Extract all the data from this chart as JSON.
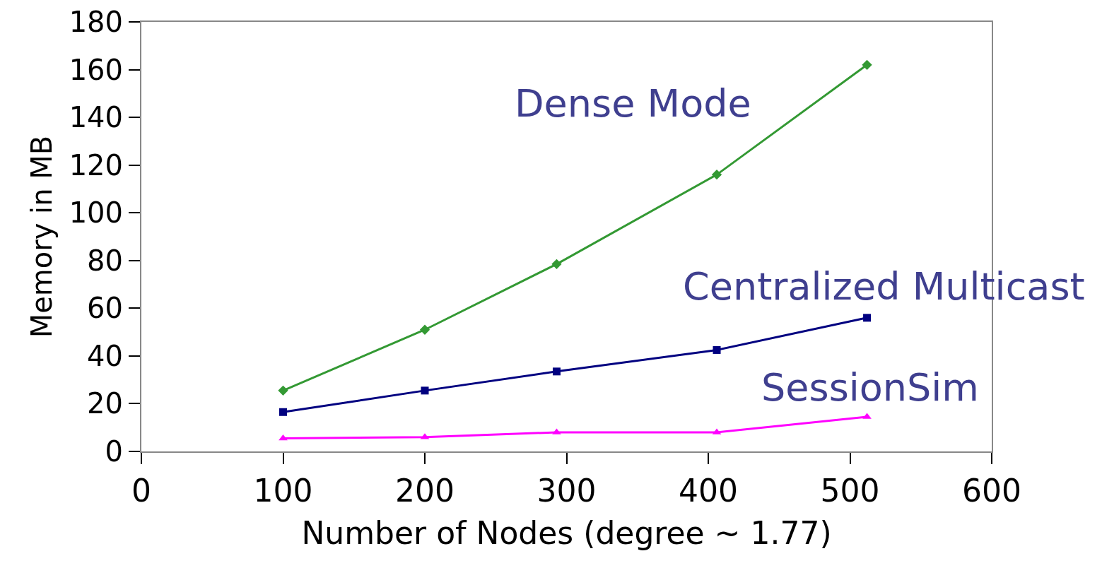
{
  "chart_data": {
    "type": "line",
    "xlabel": "Number of Nodes (degree ~ 1.77)",
    "ylabel": "Memory in MB",
    "xlim": [
      0,
      600
    ],
    "xticks": [
      0,
      100,
      200,
      300,
      400,
      500,
      600
    ],
    "ylim": [
      0,
      180
    ],
    "yticks": [
      0,
      20,
      40,
      60,
      80,
      100,
      120,
      140,
      160,
      180
    ],
    "grid": false,
    "legend": false,
    "line_style": "solid",
    "series": [
      {
        "name": "Dense Mode",
        "color": "#339933",
        "marker": "diamond",
        "x": [
          100,
          200,
          293,
          406,
          512
        ],
        "values": [
          25.5,
          51,
          78.5,
          116,
          162
        ]
      },
      {
        "name": "Centralized Multicast",
        "color": "#000080",
        "marker": "square",
        "x": [
          100,
          200,
          293,
          406,
          512
        ],
        "values": [
          16.5,
          25.5,
          33.5,
          42.5,
          56
        ]
      },
      {
        "name": "SessionSim",
        "color": "#ff00ff",
        "marker": "triangle",
        "x": [
          100,
          200,
          293,
          406,
          512
        ],
        "values": [
          5.5,
          6,
          8,
          8,
          14.5
        ]
      }
    ]
  }
}
